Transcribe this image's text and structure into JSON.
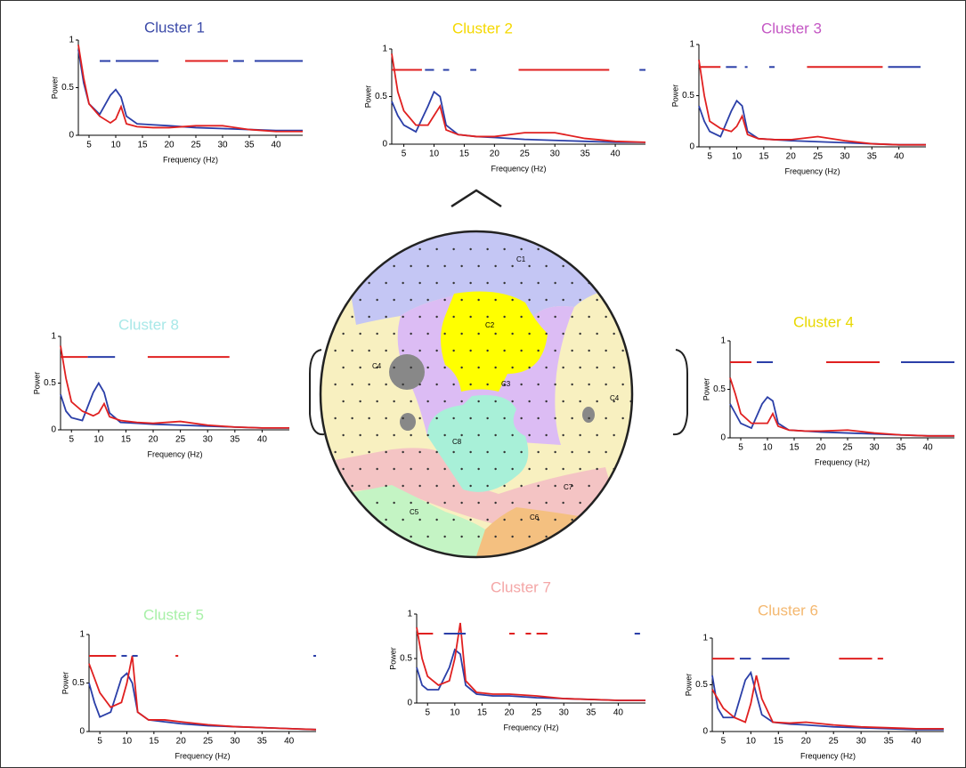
{
  "chart_data": [
    {
      "type": "line",
      "title": "Cluster 1",
      "title_color": "#3b4aa8",
      "x_label": "Frequency (Hz)",
      "y_label": "Power",
      "x": [
        3,
        4,
        5,
        7,
        9,
        10,
        11,
        12,
        14,
        17,
        20,
        25,
        30,
        35,
        40,
        45
      ],
      "xlim": [
        3,
        45
      ],
      "ylim": [
        0,
        1
      ],
      "xticks": [
        5,
        10,
        15,
        20,
        25,
        30,
        35,
        40
      ],
      "yticks": [
        0,
        0.5,
        1
      ],
      "series": [
        {
          "color": "#2b3fa8",
          "values": [
            0.9,
            0.55,
            0.33,
            0.22,
            0.42,
            0.48,
            0.4,
            0.2,
            0.12,
            0.11,
            0.1,
            0.08,
            0.07,
            0.06,
            0.05,
            0.05
          ]
        },
        {
          "color": "#e02020",
          "values": [
            0.95,
            0.6,
            0.33,
            0.2,
            0.13,
            0.17,
            0.3,
            0.12,
            0.09,
            0.08,
            0.08,
            0.1,
            0.1,
            0.06,
            0.04,
            0.04
          ]
        }
      ],
      "sig_bars": [
        {
          "color": "#2b3fa8",
          "x0": 7,
          "x1": 9
        },
        {
          "color": "#2b3fa8",
          "x0": 10,
          "x1": 18
        },
        {
          "color": "#e02020",
          "x0": 23,
          "x1": 31
        },
        {
          "color": "#2b3fa8",
          "x0": 32,
          "x1": 34
        },
        {
          "color": "#2b3fa8",
          "x0": 36,
          "x1": 45
        }
      ]
    },
    {
      "type": "line",
      "title": "Cluster 2",
      "title_color": "#f5d800",
      "x_label": "Frequency (Hz)",
      "y_label": "Power",
      "x": [
        3,
        4,
        5,
        7,
        9,
        10,
        11,
        12,
        14,
        17,
        20,
        25,
        30,
        35,
        40,
        45
      ],
      "xlim": [
        3,
        45
      ],
      "ylim": [
        0,
        1
      ],
      "xticks": [
        5,
        10,
        15,
        20,
        25,
        30,
        35,
        40
      ],
      "yticks": [
        0,
        0.5,
        1
      ],
      "series": [
        {
          "color": "#2b3fa8",
          "values": [
            0.45,
            0.3,
            0.2,
            0.13,
            0.4,
            0.55,
            0.5,
            0.2,
            0.1,
            0.08,
            0.07,
            0.05,
            0.04,
            0.03,
            0.02,
            0.02
          ]
        },
        {
          "color": "#e02020",
          "values": [
            0.95,
            0.55,
            0.35,
            0.2,
            0.2,
            0.3,
            0.4,
            0.15,
            0.1,
            0.08,
            0.08,
            0.12,
            0.12,
            0.06,
            0.03,
            0.02
          ]
        }
      ],
      "sig_bars": [
        {
          "color": "#e02020",
          "x0": 3,
          "x1": 8
        },
        {
          "color": "#2b3fa8",
          "x0": 8.5,
          "x1": 10
        },
        {
          "color": "#2b3fa8",
          "x0": 11.5,
          "x1": 12.5
        },
        {
          "color": "#2b3fa8",
          "x0": 16,
          "x1": 17
        },
        {
          "color": "#e02020",
          "x0": 24,
          "x1": 39
        },
        {
          "color": "#2b3fa8",
          "x0": 44,
          "x1": 45
        }
      ]
    },
    {
      "type": "line",
      "title": "Cluster 3",
      "title_color": "#c457c4",
      "x_label": "Frequency (Hz)",
      "y_label": "Power",
      "x": [
        3,
        4,
        5,
        7,
        9,
        10,
        11,
        12,
        14,
        17,
        20,
        25,
        30,
        35,
        40,
        45
      ],
      "xlim": [
        3,
        45
      ],
      "ylim": [
        0,
        1
      ],
      "xticks": [
        5,
        10,
        15,
        20,
        25,
        30,
        35,
        40
      ],
      "yticks": [
        0,
        0.5,
        1
      ],
      "series": [
        {
          "color": "#2b3fa8",
          "values": [
            0.4,
            0.25,
            0.15,
            0.1,
            0.35,
            0.45,
            0.4,
            0.15,
            0.08,
            0.07,
            0.06,
            0.05,
            0.04,
            0.03,
            0.02,
            0.02
          ]
        },
        {
          "color": "#e02020",
          "values": [
            0.85,
            0.5,
            0.25,
            0.18,
            0.15,
            0.2,
            0.3,
            0.12,
            0.08,
            0.07,
            0.07,
            0.1,
            0.06,
            0.03,
            0.02,
            0.02
          ]
        }
      ],
      "sig_bars": [
        {
          "color": "#e02020",
          "x0": 3,
          "x1": 7
        },
        {
          "color": "#2b3fa8",
          "x0": 8,
          "x1": 10
        },
        {
          "color": "#2b3fa8",
          "x0": 11.5,
          "x1": 12
        },
        {
          "color": "#2b3fa8",
          "x0": 16,
          "x1": 17
        },
        {
          "color": "#e02020",
          "x0": 23,
          "x1": 37
        },
        {
          "color": "#2b3fa8",
          "x0": 38,
          "x1": 44
        }
      ]
    },
    {
      "type": "line",
      "title": "Cluster 8",
      "title_color": "#a8e8e8",
      "x_label": "Frequency (Hz)",
      "y_label": "Power",
      "x": [
        3,
        4,
        5,
        7,
        9,
        10,
        11,
        12,
        14,
        17,
        20,
        25,
        30,
        35,
        40,
        45
      ],
      "xlim": [
        3,
        45
      ],
      "ylim": [
        0,
        1
      ],
      "xticks": [
        5,
        10,
        15,
        20,
        25,
        30,
        35,
        40
      ],
      "yticks": [
        0,
        0.5,
        1
      ],
      "series": [
        {
          "color": "#2b3fa8",
          "values": [
            0.38,
            0.2,
            0.13,
            0.1,
            0.4,
            0.5,
            0.4,
            0.18,
            0.08,
            0.07,
            0.06,
            0.05,
            0.04,
            0.03,
            0.02,
            0.02
          ]
        },
        {
          "color": "#e02020",
          "values": [
            0.9,
            0.55,
            0.3,
            0.2,
            0.15,
            0.18,
            0.28,
            0.14,
            0.1,
            0.08,
            0.07,
            0.09,
            0.05,
            0.03,
            0.02,
            0.02
          ]
        }
      ],
      "sig_bars": [
        {
          "color": "#e02020",
          "x0": 3,
          "x1": 8
        },
        {
          "color": "#2b3fa8",
          "x0": 8,
          "x1": 13
        },
        {
          "color": "#e02020",
          "x0": 19,
          "x1": 34
        }
      ]
    },
    {
      "type": "line",
      "title": "Cluster 4",
      "title_color": "#e8d800",
      "x_label": "Frequency (Hz)",
      "y_label": "Power",
      "x": [
        3,
        4,
        5,
        7,
        9,
        10,
        11,
        12,
        14,
        17,
        20,
        25,
        30,
        35,
        40,
        45
      ],
      "xlim": [
        3,
        45
      ],
      "ylim": [
        0,
        1
      ],
      "xticks": [
        5,
        10,
        15,
        20,
        25,
        30,
        35,
        40
      ],
      "yticks": [
        0,
        0.5,
        1
      ],
      "series": [
        {
          "color": "#2b3fa8",
          "values": [
            0.35,
            0.25,
            0.15,
            0.1,
            0.35,
            0.42,
            0.38,
            0.15,
            0.08,
            0.07,
            0.06,
            0.05,
            0.04,
            0.03,
            0.02,
            0.02
          ]
        },
        {
          "color": "#e02020",
          "values": [
            0.62,
            0.45,
            0.25,
            0.15,
            0.15,
            0.15,
            0.25,
            0.12,
            0.08,
            0.07,
            0.07,
            0.08,
            0.05,
            0.03,
            0.02,
            0.02
          ]
        }
      ],
      "sig_bars": [
        {
          "color": "#e02020",
          "x0": 3,
          "x1": 7
        },
        {
          "color": "#2b3fa8",
          "x0": 8,
          "x1": 11
        },
        {
          "color": "#e02020",
          "x0": 21,
          "x1": 31
        },
        {
          "color": "#2b3fa8",
          "x0": 35,
          "x1": 45
        }
      ]
    },
    {
      "type": "line",
      "title": "Cluster 5",
      "title_color": "#a8f0a8",
      "x_label": "Frequency (Hz)",
      "y_label": "Power",
      "x": [
        3,
        4,
        5,
        7,
        9,
        10,
        11,
        12,
        14,
        17,
        20,
        25,
        30,
        35,
        40,
        45
      ],
      "xlim": [
        3,
        45
      ],
      "ylim": [
        0,
        1
      ],
      "xticks": [
        5,
        10,
        15,
        20,
        25,
        30,
        35,
        40
      ],
      "yticks": [
        0,
        0.5,
        1
      ],
      "series": [
        {
          "color": "#2b3fa8",
          "values": [
            0.5,
            0.3,
            0.15,
            0.2,
            0.55,
            0.6,
            0.5,
            0.2,
            0.12,
            0.1,
            0.08,
            0.06,
            0.05,
            0.04,
            0.03,
            0.02
          ]
        },
        {
          "color": "#e02020",
          "values": [
            0.7,
            0.55,
            0.4,
            0.25,
            0.3,
            0.5,
            0.78,
            0.2,
            0.12,
            0.12,
            0.1,
            0.07,
            0.05,
            0.04,
            0.03,
            0.02
          ]
        }
      ],
      "sig_bars": [
        {
          "color": "#e02020",
          "x0": 3,
          "x1": 8
        },
        {
          "color": "#2b3fa8",
          "x0": 9,
          "x1": 10
        },
        {
          "color": "#2b3fa8",
          "x0": 11,
          "x1": 12
        },
        {
          "color": "#e02020",
          "x0": 19,
          "x1": 19.5
        },
        {
          "color": "#2b3fa8",
          "x0": 44.5,
          "x1": 45
        }
      ]
    },
    {
      "type": "line",
      "title": "Cluster 7",
      "title_color": "#f4a6a6",
      "x_label": "Frequency (Hz)",
      "y_label": "Power",
      "x": [
        3,
        4,
        5,
        7,
        9,
        10,
        11,
        12,
        14,
        17,
        20,
        25,
        30,
        35,
        40,
        45
      ],
      "xlim": [
        3,
        45
      ],
      "ylim": [
        0,
        1
      ],
      "xticks": [
        5,
        10,
        15,
        20,
        25,
        30,
        35,
        40
      ],
      "yticks": [
        0,
        0.5,
        1
      ],
      "series": [
        {
          "color": "#2b3fa8",
          "values": [
            0.4,
            0.2,
            0.15,
            0.15,
            0.4,
            0.6,
            0.55,
            0.2,
            0.1,
            0.08,
            0.08,
            0.06,
            0.05,
            0.04,
            0.03,
            0.03
          ]
        },
        {
          "color": "#e02020",
          "values": [
            0.85,
            0.5,
            0.3,
            0.2,
            0.25,
            0.5,
            0.9,
            0.25,
            0.12,
            0.1,
            0.1,
            0.08,
            0.05,
            0.04,
            0.03,
            0.03
          ]
        }
      ],
      "sig_bars": [
        {
          "color": "#e02020",
          "x0": 3,
          "x1": 6
        },
        {
          "color": "#2b3fa8",
          "x0": 8,
          "x1": 12
        },
        {
          "color": "#e02020",
          "x0": 20,
          "x1": 21
        },
        {
          "color": "#e02020",
          "x0": 23,
          "x1": 24
        },
        {
          "color": "#e02020",
          "x0": 25,
          "x1": 27
        },
        {
          "color": "#2b3fa8",
          "x0": 43,
          "x1": 44
        }
      ]
    },
    {
      "type": "line",
      "title": "Cluster 6",
      "title_color": "#f4b870",
      "x_label": "Frequency (Hz)",
      "y_label": "Power",
      "x": [
        3,
        4,
        5,
        7,
        9,
        10,
        11,
        12,
        14,
        17,
        20,
        25,
        30,
        35,
        40,
        45
      ],
      "xlim": [
        3,
        45
      ],
      "ylim": [
        0,
        1
      ],
      "xticks": [
        5,
        10,
        15,
        20,
        25,
        30,
        35,
        40
      ],
      "yticks": [
        0,
        0.5,
        1
      ],
      "series": [
        {
          "color": "#2b3fa8",
          "values": [
            0.6,
            0.25,
            0.15,
            0.15,
            0.55,
            0.63,
            0.4,
            0.18,
            0.1,
            0.08,
            0.07,
            0.05,
            0.04,
            0.03,
            0.02,
            0.02
          ]
        },
        {
          "color": "#e02020",
          "values": [
            0.45,
            0.35,
            0.25,
            0.15,
            0.1,
            0.3,
            0.6,
            0.35,
            0.1,
            0.09,
            0.1,
            0.07,
            0.05,
            0.04,
            0.03,
            0.03
          ]
        }
      ],
      "sig_bars": [
        {
          "color": "#e02020",
          "x0": 3,
          "x1": 7
        },
        {
          "color": "#2b3fa8",
          "x0": 8,
          "x1": 10
        },
        {
          "color": "#2b3fa8",
          "x0": 12,
          "x1": 17
        },
        {
          "color": "#e02020",
          "x0": 26,
          "x1": 32
        },
        {
          "color": "#e02020",
          "x0": 33,
          "x1": 34
        }
      ]
    }
  ],
  "head_map": {
    "labels": [
      "C1",
      "C2",
      "C3",
      "C4",
      "C4",
      "C8",
      "C7",
      "C5",
      "C6"
    ]
  }
}
